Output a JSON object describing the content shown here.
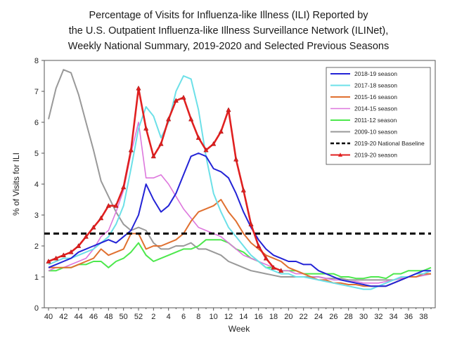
{
  "chart_data": {
    "type": "line",
    "title": [
      "Percentage of Visits for Influenza-like Illness (ILI) Reported by",
      "the U.S. Outpatient Influenza-like Illness Surveillance Network (ILINet),",
      "Weekly National Summary, 2019-2020 and Selected Previous Seasons"
    ],
    "xlabel": "Week",
    "ylabel": "% of Visits for ILI",
    "ylim": [
      0,
      8
    ],
    "yticks": [
      0,
      1,
      2,
      3,
      4,
      5,
      6,
      7,
      8
    ],
    "x_tick_labels": [
      "40",
      "42",
      "44",
      "46",
      "48",
      "50",
      "52",
      "2",
      "4",
      "6",
      "8",
      "10",
      "12",
      "14",
      "16",
      "18",
      "20",
      "22",
      "24",
      "26",
      "28",
      "30",
      "32",
      "34",
      "36",
      "38"
    ],
    "week_count": 52,
    "baseline": {
      "name": "2019-20 National Baseline",
      "value": 2.4,
      "color": "#000000"
    },
    "legend_position": "top-right",
    "series": [
      {
        "name": "2018-19 season",
        "color": "#2323d6",
        "width": 2,
        "values": [
          1.3,
          1.4,
          1.5,
          1.6,
          1.8,
          1.9,
          2.0,
          2.1,
          2.2,
          2.1,
          2.3,
          2.5,
          3.0,
          4.0,
          3.5,
          3.1,
          3.3,
          3.7,
          4.3,
          4.9,
          5.0,
          4.9,
          4.5,
          4.4,
          4.2,
          3.7,
          3.1,
          2.6,
          2.2,
          1.9,
          1.7,
          1.6,
          1.5,
          1.5,
          1.4,
          1.4,
          1.2,
          1.1,
          1.0,
          0.9,
          0.85,
          0.8,
          0.75,
          0.7,
          0.7,
          0.7,
          0.8,
          0.9,
          1.0,
          1.1,
          1.2,
          1.2
        ]
      },
      {
        "name": "2017-18 season",
        "color": "#6ce0e8",
        "width": 2,
        "values": [
          1.4,
          1.5,
          1.6,
          1.6,
          1.7,
          1.8,
          1.9,
          2.1,
          2.3,
          2.7,
          3.3,
          4.5,
          5.8,
          6.5,
          6.2,
          5.5,
          6.0,
          7.0,
          7.5,
          7.4,
          6.4,
          4.9,
          3.7,
          3.1,
          2.6,
          2.3,
          2.0,
          1.7,
          1.5,
          1.3,
          1.2,
          1.1,
          1.1,
          1.0,
          1.0,
          0.95,
          0.9,
          0.85,
          0.8,
          0.75,
          0.7,
          0.65,
          0.6,
          0.6,
          0.7,
          0.8,
          0.9,
          1.0,
          1.0,
          1.1,
          1.1,
          1.2
        ]
      },
      {
        "name": "2015-16 season",
        "color": "#e07030",
        "width": 2,
        "values": [
          1.3,
          1.3,
          1.3,
          1.3,
          1.4,
          1.5,
          1.6,
          1.9,
          1.7,
          1.8,
          1.9,
          2.4,
          2.4,
          1.9,
          2.0,
          2.0,
          2.1,
          2.2,
          2.4,
          2.8,
          3.1,
          3.2,
          3.3,
          3.5,
          3.1,
          2.8,
          2.4,
          2.1,
          1.9,
          1.7,
          1.6,
          1.5,
          1.3,
          1.2,
          1.1,
          1.0,
          0.9,
          0.9,
          0.8,
          0.8,
          0.75,
          0.75,
          0.7,
          0.7,
          0.7,
          0.7,
          0.8,
          0.9,
          1.0,
          1.0,
          1.1,
          1.1
        ]
      },
      {
        "name": "2014-15 season",
        "color": "#dd77dd",
        "width": 1.6,
        "values": [
          1.2,
          1.3,
          1.3,
          1.4,
          1.5,
          1.6,
          1.9,
          2.3,
          2.5,
          3.1,
          3.8,
          5.0,
          6.0,
          4.2,
          4.2,
          4.3,
          4.0,
          3.6,
          3.2,
          2.9,
          2.6,
          2.5,
          2.4,
          2.3,
          2.1,
          1.9,
          1.7,
          1.6,
          1.5,
          1.4,
          1.3,
          1.2,
          1.2,
          1.1,
          1.1,
          1.0,
          1.0,
          0.95,
          0.9,
          0.9,
          0.85,
          0.85,
          0.8,
          0.8,
          0.8,
          0.85,
          0.9,
          0.95,
          1.0,
          1.0,
          1.05,
          1.1
        ]
      },
      {
        "name": "2011-12 season",
        "color": "#4de84d",
        "width": 2,
        "values": [
          1.2,
          1.2,
          1.3,
          1.3,
          1.4,
          1.4,
          1.5,
          1.5,
          1.3,
          1.5,
          1.6,
          1.8,
          2.1,
          1.7,
          1.5,
          1.6,
          1.7,
          1.8,
          1.9,
          1.9,
          2.0,
          2.2,
          2.2,
          2.2,
          2.1,
          1.9,
          1.8,
          1.6,
          1.5,
          1.3,
          1.3,
          1.2,
          1.2,
          1.2,
          1.1,
          1.1,
          1.1,
          1.1,
          1.1,
          1.0,
          1.0,
          0.95,
          0.95,
          1.0,
          1.0,
          0.95,
          1.1,
          1.1,
          1.2,
          1.2,
          1.2,
          1.3
        ]
      },
      {
        "name": "2009-10 season",
        "color": "#999999",
        "width": 2,
        "values": [
          6.1,
          7.1,
          7.7,
          7.6,
          6.9,
          6.0,
          5.1,
          4.1,
          3.6,
          3.1,
          2.7,
          2.5,
          2.6,
          2.5,
          2.1,
          1.9,
          1.9,
          2.0,
          2.0,
          2.1,
          1.9,
          1.9,
          1.8,
          1.7,
          1.5,
          1.4,
          1.3,
          1.2,
          1.15,
          1.1,
          1.05,
          1.0,
          1.0,
          1.0,
          1.0,
          1.0,
          1.0,
          0.95,
          0.95,
          0.95,
          0.9,
          0.9,
          0.9,
          0.9,
          0.9,
          0.9,
          0.9,
          0.95,
          1.0,
          1.0,
          1.05,
          1.1
        ]
      },
      {
        "name": "2019-20 season",
        "color": "#e02020",
        "width": 2.6,
        "markers": true,
        "values": [
          1.5,
          1.6,
          1.7,
          1.8,
          2.0,
          2.3,
          2.6,
          2.9,
          3.3,
          3.3,
          3.9,
          5.1,
          7.1,
          5.8,
          4.9,
          5.3,
          6.1,
          6.7,
          6.8,
          6.1,
          5.5,
          5.1,
          5.3,
          5.7,
          6.4,
          4.8,
          3.8,
          2.7,
          2.0,
          1.6,
          1.3,
          1.2
        ]
      }
    ]
  }
}
